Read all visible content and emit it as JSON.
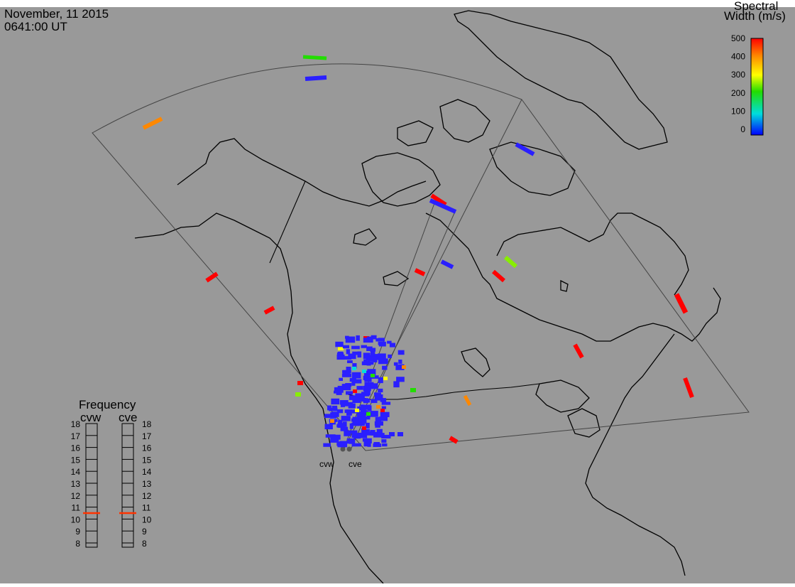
{
  "header": {
    "date": "November, 11 2015",
    "time": "0641:00 UT"
  },
  "colorbar": {
    "title_line1": "Spectral",
    "title_line2": "Width (m/s)",
    "ticks": [
      "500",
      "400",
      "300",
      "200",
      "100",
      "0"
    ],
    "colors": [
      "#ff0000",
      "#ff8800",
      "#ffff00",
      "#22dd00",
      "#00dddd",
      "#0000ff"
    ]
  },
  "radars": {
    "left_label": "cvw",
    "right_label": "cve"
  },
  "frequency": {
    "title": "Frequency",
    "left_label": "cvw",
    "right_label": "cve",
    "ticks": [
      "18",
      "17",
      "16",
      "15",
      "14",
      "13",
      "12",
      "11",
      "10",
      "9",
      "8"
    ],
    "cvw_value": 10.5,
    "cve_value": 10.5,
    "marker_color": "#ff3300"
  },
  "colors": {
    "background": "#999999",
    "land_outline": "#000000",
    "fov_outline": "#444444",
    "scatter_blue": "#2a1fff"
  }
}
